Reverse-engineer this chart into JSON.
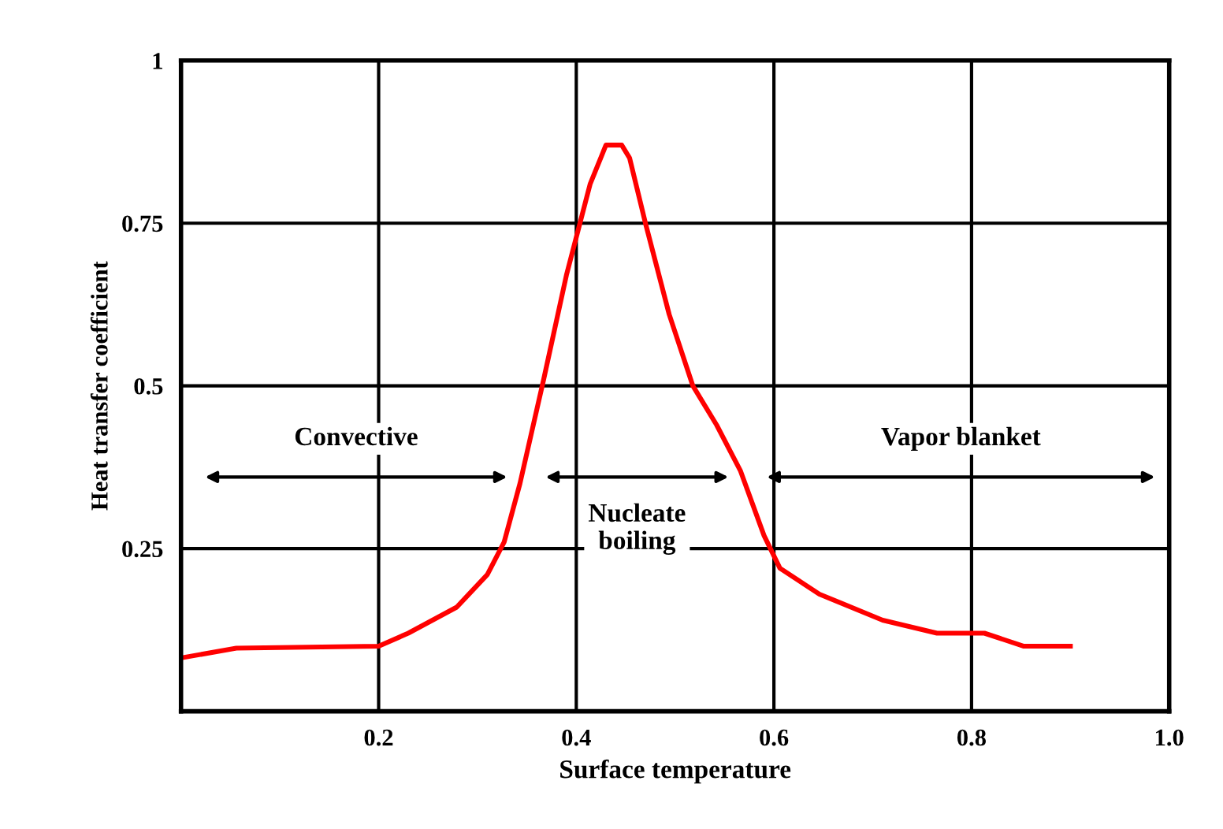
{
  "chart_data": {
    "type": "line",
    "xlabel": "Surface temperature",
    "ylabel": "Heat transfer coefficient",
    "x": [
      0,
      0.056,
      0.2,
      0.23,
      0.279,
      0.31,
      0.327,
      0.343,
      0.367,
      0.39,
      0.414,
      0.43,
      0.446,
      0.454,
      0.47,
      0.494,
      0.518,
      0.542,
      0.566,
      0.59,
      0.606,
      0.646,
      0.71,
      0.765,
      0.813,
      0.853,
      0.9
    ],
    "series": [
      {
        "color": "#ff0000",
        "values": [
          0.082,
          0.097,
          0.1,
          0.12,
          0.16,
          0.21,
          0.26,
          0.35,
          0.51,
          0.67,
          0.81,
          0.87,
          0.87,
          0.85,
          0.75,
          0.61,
          0.5,
          0.44,
          0.37,
          0.27,
          0.22,
          0.18,
          0.14,
          0.12,
          0.12,
          0.1,
          0.1
        ]
      }
    ],
    "xlim": [
      0,
      1
    ],
    "ylim": [
      0,
      1
    ],
    "xticks": [
      0.2,
      0.4,
      0.6,
      0.8,
      {
        "value": 1,
        "label": "1.0"
      }
    ],
    "yticks": [
      0.25,
      0.5,
      0.75,
      1
    ],
    "grid": true,
    "annotations": [
      "Convective",
      "Nucleate\nboiling",
      "Vapor blanket"
    ]
  }
}
